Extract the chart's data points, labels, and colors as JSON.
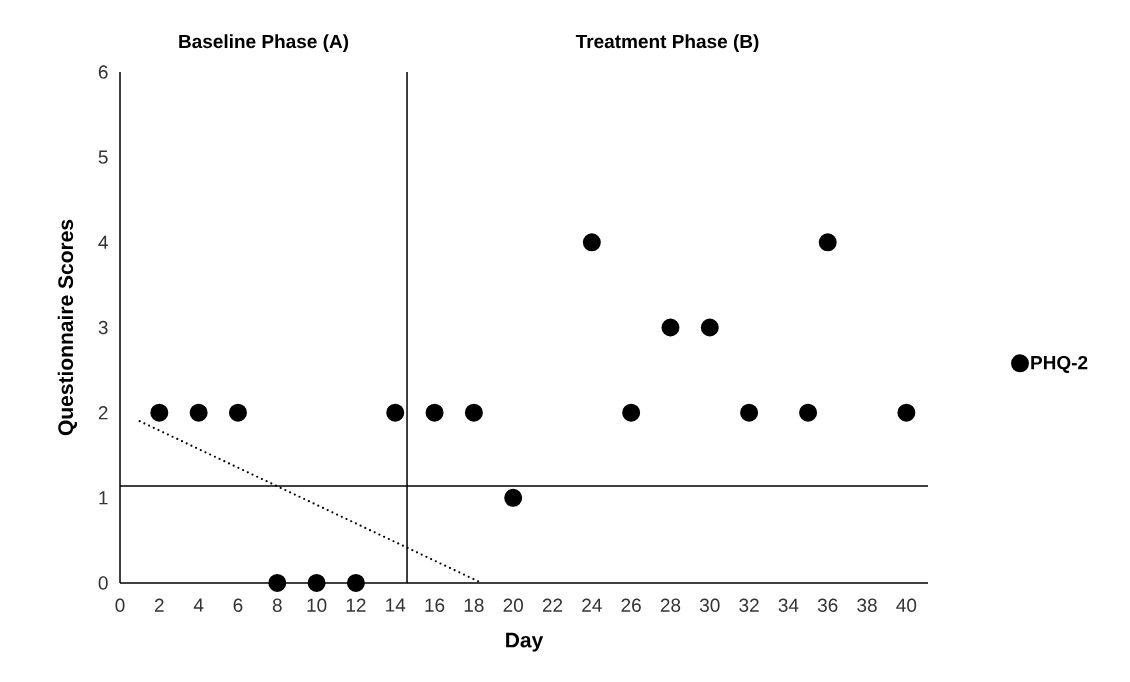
{
  "chart_data": {
    "type": "scatter",
    "xlabel": "Day",
    "ylabel": "Questionnaire Scores",
    "annotations": [
      "Baseline Phase (A)",
      "Treatment Phase (B)"
    ],
    "xlim": [
      0,
      41.1
    ],
    "ylim": [
      0,
      6
    ],
    "xticks": [
      0,
      2,
      4,
      6,
      8,
      10,
      12,
      14,
      16,
      18,
      20,
      22,
      24,
      26,
      28,
      30,
      32,
      34,
      36,
      38,
      40
    ],
    "yticks": [
      0,
      1,
      2,
      3,
      4,
      5,
      6
    ],
    "grid": false,
    "legend": "right",
    "ref_lines": [
      {
        "axis": "x",
        "value": 14.6,
        "color": "#000000"
      },
      {
        "axis": "y",
        "value": 1.14,
        "color": "#000000"
      }
    ],
    "series": [
      {
        "name": "PHQ-2",
        "color": "#000000",
        "marker": "circle",
        "x": [
          2,
          4,
          6,
          8,
          10,
          12,
          14,
          16,
          18,
          20,
          24,
          26,
          28,
          30,
          32,
          35,
          36,
          40
        ],
        "values": [
          2,
          2,
          2,
          0,
          0,
          0,
          2,
          2,
          2,
          1,
          4,
          2,
          3,
          3,
          2,
          2,
          4,
          2
        ]
      },
      {
        "type": "line",
        "color": "#000000",
        "line_style": "dotted",
        "marker": "none",
        "x": [
          1,
          18.4
        ],
        "values": [
          1.9,
          0
        ]
      }
    ]
  }
}
